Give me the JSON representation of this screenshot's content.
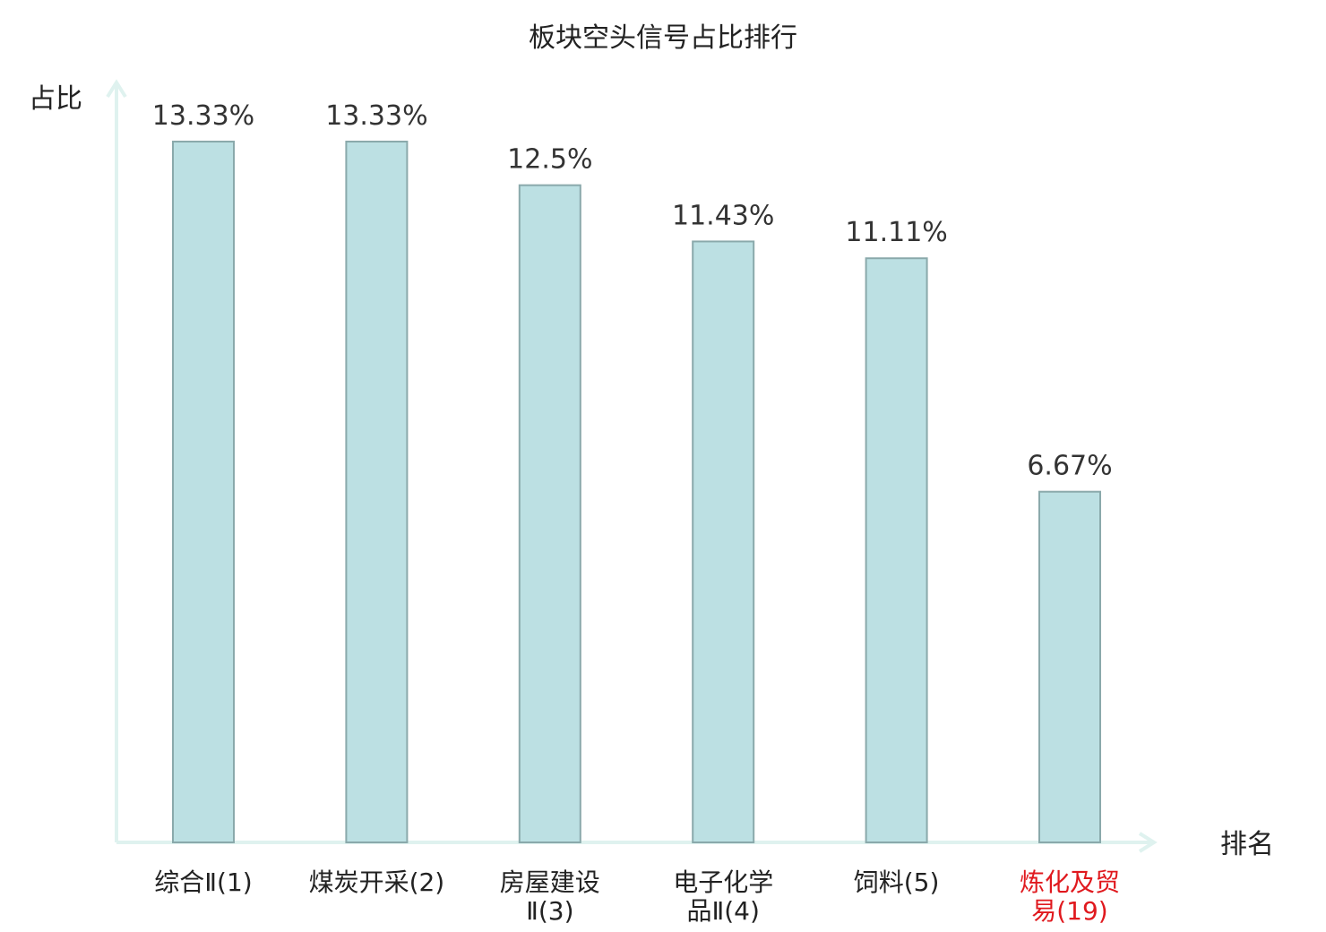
{
  "chart_data": {
    "type": "bar",
    "title": "板块空头信号占比排行",
    "ylabel": "占比",
    "xlabel": "排名",
    "ylim": [
      0,
      15
    ],
    "categories": [
      {
        "lines": [
          "综合Ⅱ(1)"
        ],
        "highlight": false
      },
      {
        "lines": [
          "煤炭开采(2)"
        ],
        "highlight": false
      },
      {
        "lines": [
          "房屋建设",
          "Ⅱ(3)"
        ],
        "highlight": false
      },
      {
        "lines": [
          "电子化学",
          "品Ⅱ(4)"
        ],
        "highlight": false
      },
      {
        "lines": [
          "饲料(5)"
        ],
        "highlight": false
      },
      {
        "lines": [
          "炼化及贸",
          "易(19)"
        ],
        "highlight": true
      }
    ],
    "values": [
      13.33,
      13.33,
      12.5,
      11.43,
      11.11,
      6.67
    ],
    "value_labels": [
      "13.33%",
      "13.33%",
      "12.5%",
      "11.43%",
      "11.11%",
      "6.67%"
    ],
    "colors": {
      "bar_fill": "#bce0e3",
      "bar_stroke": "#8aa9ab",
      "axis": "#dff2ef",
      "label": "#222222",
      "highlight": "#e0191e"
    },
    "grid": false
  }
}
